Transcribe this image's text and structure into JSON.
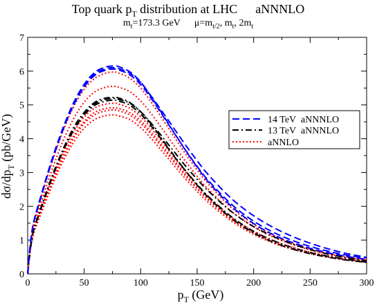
{
  "chart_data": {
    "type": "line",
    "title": {
      "main": "Top quark p",
      "main_sub": "T",
      "main_rest": " distribution at LHC",
      "tag": "aNNNLO"
    },
    "subtitle": {
      "mt_a": "m",
      "mt_a_sub": "t",
      "mt_b": "=173.3 GeV",
      "mu_a": "μ=m",
      "mu_a_sub": "t/2",
      "mu_b": ", m",
      "mu_b_sub": "t",
      "mu_c": ", 2m",
      "mu_c_sub": "t"
    },
    "xlabel": {
      "main": "p",
      "sub": "T",
      "rest": " (GeV)"
    },
    "ylabel": {
      "main": "dσ/dp",
      "sub": "T",
      "rest": " (pb/GeV)"
    },
    "xlim": [
      0,
      300
    ],
    "ylim": [
      0,
      7
    ],
    "xticks": [
      "0",
      "50",
      "100",
      "150",
      "200",
      "250",
      "300"
    ],
    "yticks": [
      "0",
      "1",
      "2",
      "3",
      "4",
      "5",
      "6",
      "7"
    ],
    "grid": false,
    "legend_position": "right",
    "legend": [
      {
        "label": "14 TeV  aNNNLO",
        "color": "#0000ff",
        "dash": "10,5"
      },
      {
        "label": "13 TeV  aNNNLO",
        "color": "#000000",
        "dash": "9,4,2,4"
      },
      {
        "label": "aNNLO",
        "color": "#ff0000",
        "dash": "2,3"
      }
    ],
    "x": [
      0,
      2,
      5,
      10,
      20,
      30,
      40,
      50,
      60,
      70,
      77,
      80,
      90,
      100,
      110,
      120,
      130,
      140,
      150,
      160,
      180,
      200,
      220,
      240,
      260,
      280,
      300
    ],
    "series": [
      {
        "legend_index": 0,
        "color": "#0000ff",
        "dash": "10,5",
        "values": [
          0,
          0.78,
          1.49,
          2.11,
          3.23,
          4.21,
          5.02,
          5.61,
          5.98,
          6.13,
          6.15,
          6.14,
          5.99,
          5.68,
          5.21,
          4.69,
          4.16,
          3.64,
          3.16,
          2.72,
          2.01,
          1.49,
          1.12,
          0.86,
          0.67,
          0.53,
          0.43
        ]
      },
      {
        "legend_index": 0,
        "color": "#0000ff",
        "dash": "10,5",
        "values": [
          0,
          0.77,
          1.48,
          2.09,
          3.21,
          4.18,
          4.98,
          5.57,
          5.93,
          6.08,
          6.1,
          6.08,
          5.95,
          5.66,
          5.23,
          4.76,
          4.28,
          3.8,
          3.35,
          2.93,
          2.24,
          1.72,
          1.33,
          1.03,
          0.8,
          0.62,
          0.49
        ]
      },
      {
        "legend_index": 0,
        "color": "#0000ff",
        "dash": "10,5",
        "values": [
          0,
          0.76,
          1.47,
          2.06,
          3.18,
          4.15,
          4.95,
          5.53,
          5.89,
          6.04,
          6.06,
          6.04,
          5.9,
          5.6,
          5.16,
          4.66,
          4.15,
          3.65,
          3.18,
          2.76,
          2.07,
          1.56,
          1.19,
          0.92,
          0.72,
          0.57,
          0.47
        ]
      },
      {
        "legend_index": 1,
        "color": "#000000",
        "dash": "9,4,2,4",
        "values": [
          0,
          0.66,
          1.27,
          1.79,
          2.75,
          3.59,
          4.29,
          4.78,
          5.09,
          5.21,
          5.22,
          5.21,
          5.08,
          4.8,
          4.4,
          3.94,
          3.48,
          3.04,
          2.63,
          2.26,
          1.65,
          1.21,
          0.9,
          0.68,
          0.53,
          0.42,
          0.34
        ]
      },
      {
        "legend_index": 1,
        "color": "#000000",
        "dash": "9,4,2,4",
        "values": [
          0,
          0.65,
          1.26,
          1.77,
          2.73,
          3.56,
          4.25,
          4.74,
          5.05,
          5.17,
          5.19,
          5.17,
          5.06,
          4.8,
          4.43,
          4.02,
          3.6,
          3.18,
          2.8,
          2.45,
          1.85,
          1.4,
          1.07,
          0.82,
          0.63,
          0.49,
          0.38
        ]
      },
      {
        "legend_index": 1,
        "color": "#000000",
        "dash": "9,4,2,4",
        "values": [
          0,
          0.64,
          1.25,
          1.75,
          2.7,
          3.53,
          4.21,
          4.7,
          5.0,
          5.12,
          5.14,
          5.12,
          5.0,
          4.73,
          4.35,
          3.91,
          3.46,
          3.04,
          2.65,
          2.29,
          1.7,
          1.26,
          0.95,
          0.72,
          0.56,
          0.44,
          0.35
        ]
      },
      {
        "legend_index": 2,
        "color": "#ff0000",
        "dash": "2,3",
        "values": [
          0,
          0.76,
          1.46,
          2.06,
          3.15,
          4.11,
          4.9,
          5.46,
          5.8,
          5.95,
          5.97,
          5.95,
          5.8,
          5.5,
          5.05,
          4.55,
          4.04,
          3.54,
          3.08,
          2.66,
          1.97,
          1.47,
          1.1,
          0.84,
          0.65,
          0.52,
          0.42
        ]
      },
      {
        "legend_index": 2,
        "color": "#ff0000",
        "dash": "2,3",
        "values": [
          0,
          0.7,
          1.36,
          1.91,
          2.93,
          3.83,
          4.55,
          5.08,
          5.4,
          5.53,
          5.55,
          5.53,
          5.4,
          5.12,
          4.71,
          4.25,
          3.78,
          3.32,
          2.89,
          2.5,
          1.86,
          1.39,
          1.05,
          0.81,
          0.63,
          0.5,
          0.41
        ]
      },
      {
        "legend_index": 2,
        "color": "#ff0000",
        "dash": "2,3",
        "values": [
          0,
          0.64,
          1.24,
          1.74,
          2.67,
          3.49,
          4.16,
          4.64,
          4.92,
          5.03,
          5.05,
          5.03,
          4.91,
          4.65,
          4.28,
          3.86,
          3.43,
          3.01,
          2.62,
          2.27,
          1.69,
          1.26,
          0.95,
          0.73,
          0.57,
          0.45,
          0.37
        ]
      },
      {
        "legend_index": 2,
        "color": "#ff0000",
        "dash": "2,3",
        "values": [
          0,
          0.62,
          1.2,
          1.69,
          2.59,
          3.39,
          4.04,
          4.51,
          4.79,
          4.9,
          4.91,
          4.9,
          4.78,
          4.53,
          4.17,
          3.76,
          3.34,
          2.93,
          2.55,
          2.21,
          1.65,
          1.23,
          0.93,
          0.71,
          0.55,
          0.44,
          0.36
        ]
      },
      {
        "legend_index": 2,
        "color": "#ff0000",
        "dash": "2,3",
        "values": [
          0,
          0.59,
          1.15,
          1.62,
          2.48,
          3.24,
          3.86,
          4.31,
          4.58,
          4.69,
          4.7,
          4.68,
          4.57,
          4.33,
          3.98,
          3.59,
          3.19,
          2.8,
          2.44,
          2.11,
          1.57,
          1.17,
          0.88,
          0.68,
          0.53,
          0.42,
          0.34
        ]
      },
      {
        "legend_index": 2,
        "color": "#ff0000",
        "dash": "2,3",
        "values": [
          0,
          0.61,
          1.18,
          1.66,
          2.55,
          3.34,
          3.98,
          4.45,
          4.72,
          4.83,
          4.85,
          4.83,
          4.71,
          4.46,
          4.1,
          3.7,
          3.29,
          2.89,
          2.52,
          2.18,
          1.62,
          1.21,
          0.91,
          0.7,
          0.55,
          0.43,
          0.35
        ]
      }
    ]
  }
}
